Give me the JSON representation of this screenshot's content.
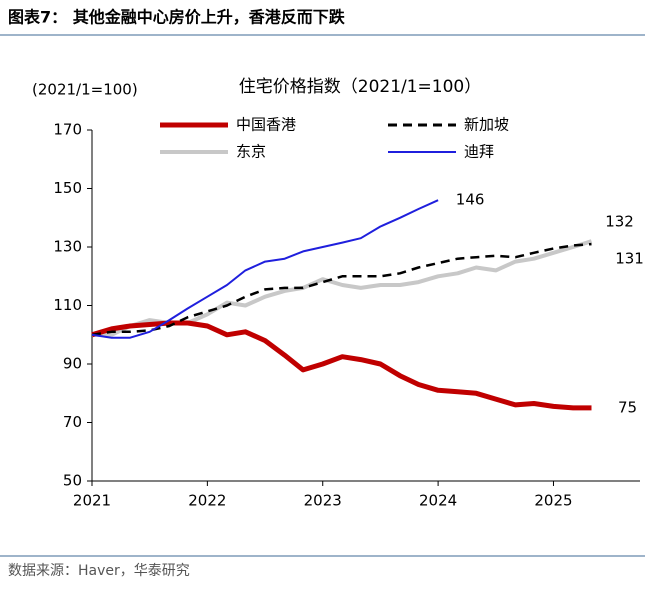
{
  "header": "图表7：  其他金融中心房价上升，香港反而下跌",
  "source": "数据来源：Haver，华泰研究",
  "chart_data": {
    "type": "line",
    "title": "住宅价格指数（2021/1=100）",
    "y_label": "(2021/1=100)",
    "x": [
      2021,
      2021.17,
      2021.33,
      2021.5,
      2021.67,
      2021.83,
      2022,
      2022.17,
      2022.33,
      2022.5,
      2022.67,
      2022.83,
      2023,
      2023.17,
      2023.33,
      2023.5,
      2023.67,
      2023.83,
      2024,
      2024.17,
      2024.33,
      2024.5,
      2024.67,
      2024.83,
      2025,
      2025.17,
      2025.33
    ],
    "xlim": [
      2021,
      2025.75
    ],
    "xticks": [
      2021,
      2022,
      2023,
      2024,
      2025
    ],
    "ylim": [
      50,
      170
    ],
    "yticks": [
      50,
      70,
      90,
      110,
      130,
      150,
      170
    ],
    "grid": false,
    "series": [
      {
        "name": "中国香港",
        "color": "#c00000",
        "dash": false,
        "end_value": 75,
        "values": [
          100,
          102,
          103,
          103.5,
          104,
          104,
          103,
          100,
          101,
          98,
          93,
          88,
          90,
          92.5,
          91.5,
          90,
          86,
          83,
          81,
          80.5,
          80,
          78,
          76,
          76.5,
          75.5,
          75,
          75
        ]
      },
      {
        "name": "新加坡",
        "color": "#000000",
        "dash": true,
        "end_value": 131,
        "values": [
          100,
          101,
          101,
          101.5,
          103,
          106,
          108,
          110,
          113,
          115.5,
          116,
          116,
          118,
          120,
          120,
          120,
          121,
          123,
          124.5,
          126,
          126.5,
          127,
          126.5,
          128,
          129.5,
          130.5,
          131
        ]
      },
      {
        "name": "东京",
        "color": "#c8c8c8",
        "dash": false,
        "end_value": 132,
        "values": [
          100,
          100,
          103,
          105,
          104,
          104,
          107,
          111,
          110,
          113,
          115,
          116,
          119,
          117,
          116,
          117,
          117,
          118,
          120,
          121,
          123,
          122,
          125,
          126,
          128,
          130,
          132
        ]
      },
      {
        "name": "迪拜",
        "color": "#1f1fdd",
        "dash": false,
        "end_value": 146,
        "values": [
          100,
          99,
          99,
          101,
          105,
          109,
          113,
          117,
          122,
          125,
          126,
          128.5,
          130,
          131.5,
          133,
          137,
          140,
          143,
          146,
          null,
          null,
          null,
          null,
          null,
          null,
          null,
          null
        ]
      }
    ]
  }
}
